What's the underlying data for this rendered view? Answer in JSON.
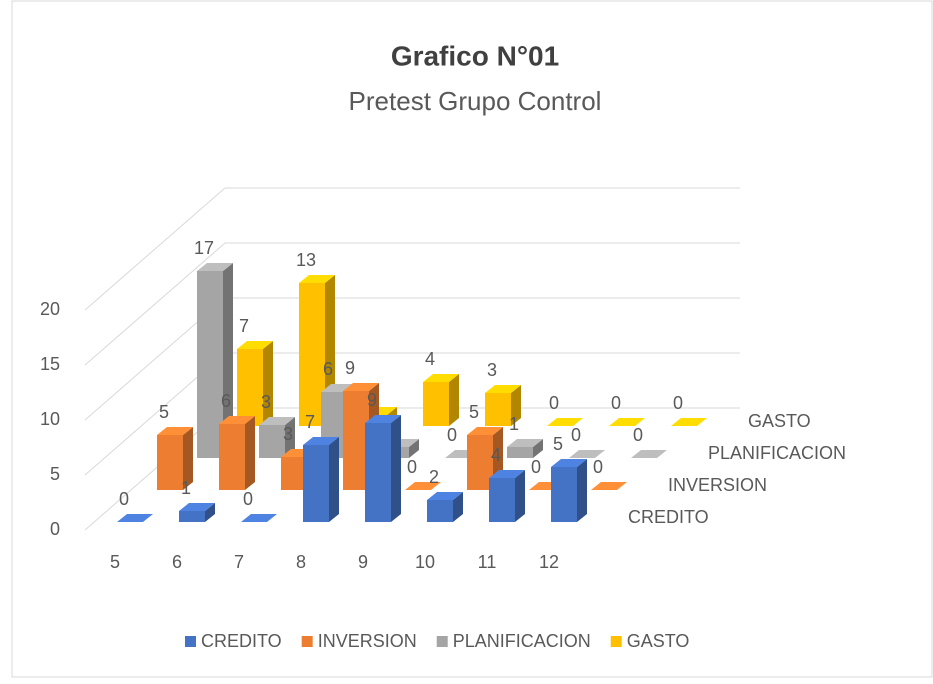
{
  "chart_data": {
    "type": "bar3d",
    "title": "Grafico N°01",
    "subtitle": "Pretest Grupo Control",
    "categories": [
      "5",
      "6",
      "7",
      "8",
      "9",
      "10",
      "11",
      "12"
    ],
    "series": [
      {
        "name": "CREDITO",
        "color": "#4472c4",
        "values": [
          0,
          1,
          0,
          7,
          9,
          2,
          4,
          5
        ]
      },
      {
        "name": "INVERSION",
        "color": "#ed7d31",
        "values": [
          5,
          6,
          3,
          9,
          0,
          5,
          0,
          0
        ]
      },
      {
        "name": "PLANIFICACION",
        "color": "#a5a5a5",
        "values": [
          17,
          3,
          6,
          1,
          0,
          1,
          0,
          0
        ]
      },
      {
        "name": "GASTO",
        "color": "#ffc000",
        "values": [
          7,
          13,
          1,
          4,
          3,
          0,
          0,
          0
        ]
      }
    ],
    "ylim": [
      0,
      20
    ],
    "yticks": [
      0,
      5,
      10,
      15,
      20
    ],
    "grid": true,
    "legend": "bottom"
  }
}
